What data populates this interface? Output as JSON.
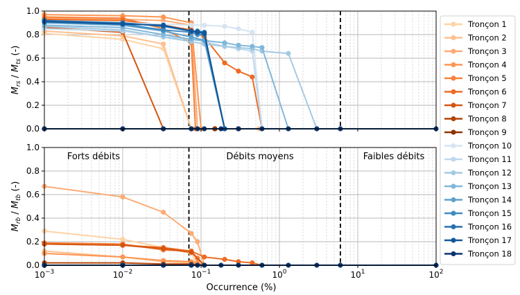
{
  "chart_data": [
    {
      "type": "line",
      "panel": "top",
      "ylabel_main": "M",
      "ylabel_main_sub": "rs",
      "ylabel_sep": " / ",
      "ylabel_den": "M",
      "ylabel_den_sub": "ts",
      "ylabel_unit": " (-)",
      "xscale": "log",
      "xlim": [
        0.001,
        100
      ],
      "ylim": [
        0,
        1.0
      ],
      "yticks": [
        "0.0",
        "0.2",
        "0.4",
        "0.6",
        "0.8",
        "1.0"
      ],
      "grid": true,
      "vlines_x": [
        0.07,
        6
      ],
      "series": [
        {
          "name": "Tronçon 1",
          "x": [
            0.001,
            0.01,
            0.033,
            0.075,
            0.15,
            0.3,
            0.55
          ],
          "y": [
            0.81,
            0.76,
            0.68,
            0.0,
            0.0,
            0.0,
            0.0
          ]
        },
        {
          "name": "Tronçon 2",
          "x": [
            0.001,
            0.01,
            0.033,
            0.075,
            0.15,
            0.3,
            0.55
          ],
          "y": [
            0.83,
            0.79,
            0.72,
            0.0,
            0.0,
            0.0,
            0.0
          ]
        },
        {
          "name": "Tronçon 3",
          "x": [
            0.001,
            0.01,
            0.033,
            0.075,
            0.09,
            0.15,
            0.3
          ],
          "y": [
            0.94,
            0.93,
            0.92,
            0.88,
            0.0,
            0.0,
            0.0
          ]
        },
        {
          "name": "Tronçon 4",
          "x": [
            0.001,
            0.01,
            0.033,
            0.075,
            0.1,
            0.15,
            0.3
          ],
          "y": [
            0.97,
            0.96,
            0.95,
            0.9,
            0.0,
            0.0,
            0.0
          ]
        },
        {
          "name": "Tronçon 5",
          "x": [
            0.001,
            0.01,
            0.033,
            0.075,
            0.085,
            0.15,
            0.3
          ],
          "y": [
            0.95,
            0.94,
            0.85,
            0.73,
            0.0,
            0.0,
            0.0
          ]
        },
        {
          "name": "Tronçon 6",
          "x": [
            0.001,
            0.01,
            0.033,
            0.075,
            0.11,
            0.2,
            0.3,
            0.45,
            0.6
          ],
          "y": [
            0.93,
            0.92,
            0.88,
            0.84,
            0.78,
            0.56,
            0.49,
            0.44,
            0.0
          ]
        },
        {
          "name": "Tronçon 7",
          "x": [
            0.001,
            0.01,
            0.033,
            0.075,
            0.15,
            0.3
          ],
          "y": [
            0.86,
            0.82,
            0.0,
            0.0,
            0.0,
            0.0
          ]
        },
        {
          "name": "Tronçon 8",
          "x": [
            0.001,
            0.01,
            0.033,
            0.075,
            0.15,
            0.3
          ],
          "y": [
            0.0,
            0.0,
            0.0,
            0.0,
            0.0,
            0.0
          ]
        },
        {
          "name": "Tronçon 9",
          "x": [
            0.001,
            0.01,
            0.033,
            0.075,
            0.15,
            0.3
          ],
          "y": [
            0.0,
            0.0,
            0.0,
            0.0,
            0.0,
            0.0
          ]
        },
        {
          "name": "Tronçon 10",
          "x": [
            0.001,
            0.01,
            0.033,
            0.075,
            0.11,
            0.2,
            0.3,
            0.45,
            0.6
          ],
          "y": [
            0.9,
            0.9,
            0.89,
            0.88,
            0.88,
            0.87,
            0.85,
            0.82,
            0.0
          ]
        },
        {
          "name": "Tronçon 11",
          "x": [
            0.001,
            0.01,
            0.033,
            0.075,
            0.11,
            0.2,
            0.3,
            0.45,
            0.6
          ],
          "y": [
            0.85,
            0.83,
            0.78,
            0.76,
            0.74,
            0.7,
            0.68,
            0.66,
            0.0
          ]
        },
        {
          "name": "Tronçon 12",
          "x": [
            0.001,
            0.01,
            0.033,
            0.075,
            0.11,
            0.2,
            0.3,
            0.45,
            0.6,
            1.3,
            3.0
          ],
          "y": [
            0.87,
            0.84,
            0.78,
            0.74,
            0.72,
            0.7,
            0.69,
            0.68,
            0.66,
            0.64,
            0.0
          ]
        },
        {
          "name": "Tronçon 13",
          "x": [
            0.001,
            0.01,
            0.033,
            0.075,
            0.11,
            0.2,
            0.3,
            0.45,
            0.6,
            1.3
          ],
          "y": [
            0.88,
            0.86,
            0.8,
            0.76,
            0.75,
            0.73,
            0.71,
            0.7,
            0.69,
            0.0
          ]
        },
        {
          "name": "Tronçon 14",
          "x": [
            0.001,
            0.01,
            0.033,
            0.075,
            0.11,
            0.2
          ],
          "y": [
            0.9,
            0.88,
            0.83,
            0.78,
            0.75,
            0.0
          ]
        },
        {
          "name": "Tronçon 15",
          "x": [
            0.001,
            0.01,
            0.033,
            0.075,
            0.09,
            0.11,
            0.2
          ],
          "y": [
            0.91,
            0.89,
            0.84,
            0.82,
            0.8,
            0.8,
            0.0
          ]
        },
        {
          "name": "Tronçon 16",
          "x": [
            0.001,
            0.01,
            0.033,
            0.075,
            0.09,
            0.11,
            0.2
          ],
          "y": [
            0.92,
            0.9,
            0.87,
            0.83,
            0.83,
            0.82,
            0.0
          ]
        },
        {
          "name": "Tronçon 17",
          "x": [
            0.001,
            0.01,
            0.033,
            0.075,
            0.09,
            0.11,
            0.2
          ],
          "y": [
            0.91,
            0.89,
            0.88,
            0.83,
            0.82,
            0.81,
            0.0
          ]
        },
        {
          "name": "Tronçon 18",
          "x": [
            0.001,
            0.01,
            0.033,
            0.075,
            0.09,
            0.11,
            0.18,
            0.3,
            0.6,
            1.3,
            3.0,
            6.0,
            100
          ],
          "y": [
            0.0,
            0.0,
            0.0,
            0.0,
            0.0,
            0.0,
            0.0,
            0.0,
            0.0,
            0.0,
            0.0,
            0.0,
            0.0
          ]
        }
      ]
    },
    {
      "type": "line",
      "panel": "bottom",
      "ylabel_main": "M",
      "ylabel_main_sub": "rb",
      "ylabel_sep": " / ",
      "ylabel_den": "M",
      "ylabel_den_sub": "tb",
      "ylabel_unit": " (-)",
      "xlabel": "Occurrence (%)",
      "xscale": "log",
      "xlim": [
        0.001,
        100
      ],
      "ylim": [
        0,
        1.0
      ],
      "yticks": [
        "0.0",
        "0.2",
        "0.4",
        "0.6",
        "0.8",
        "1.0"
      ],
      "xticks": [
        {
          "base": "10",
          "exp": "−3"
        },
        {
          "base": "10",
          "exp": "−2"
        },
        {
          "base": "10",
          "exp": "−1"
        },
        {
          "base": "10",
          "exp": "0"
        },
        {
          "base": "10",
          "exp": "1"
        },
        {
          "base": "10",
          "exp": "2"
        }
      ],
      "grid": true,
      "vlines_x": [
        0.07,
        6
      ],
      "regions": [
        "Forts débits",
        "Débits moyens",
        "Faibles débits"
      ],
      "series": [
        {
          "name": "Tronçon 1",
          "x": [
            0.001,
            0.01,
            0.033,
            0.075,
            0.09
          ],
          "y": [
            0.29,
            0.22,
            0.15,
            0.1,
            0.0
          ]
        },
        {
          "name": "Tronçon 2",
          "x": [
            0.001,
            0.01,
            0.033,
            0.075,
            0.09
          ],
          "y": [
            0.12,
            0.07,
            0.03,
            0.02,
            0.0
          ]
        },
        {
          "name": "Tronçon 3",
          "x": [
            0.001,
            0.01,
            0.033,
            0.075,
            0.09,
            0.11
          ],
          "y": [
            0.67,
            0.58,
            0.45,
            0.27,
            0.2,
            0.0
          ]
        },
        {
          "name": "Tronçon 4",
          "x": [
            0.001,
            0.01,
            0.033,
            0.075,
            0.09,
            0.11
          ],
          "y": [
            0.1,
            0.07,
            0.04,
            0.03,
            0.02,
            0.0
          ]
        },
        {
          "name": "Tronçon 5",
          "x": [
            0.001,
            0.01,
            0.033,
            0.075,
            0.09,
            0.11
          ],
          "y": [
            0.19,
            0.18,
            0.13,
            0.12,
            0.06,
            0.0
          ]
        },
        {
          "name": "Tronçon 6",
          "x": [
            0.001,
            0.01,
            0.033,
            0.075,
            0.11,
            0.2,
            0.3,
            0.45,
            0.6
          ],
          "y": [
            0.18,
            0.17,
            0.15,
            0.12,
            0.07,
            0.05,
            0.03,
            0.02,
            0.0
          ]
        },
        {
          "name": "Tronçon 7",
          "x": [
            0.001,
            0.01,
            0.033,
            0.075,
            0.11
          ],
          "y": [
            0.18,
            0.17,
            0.14,
            0.11,
            0.0
          ]
        },
        {
          "name": "Tronçon 8",
          "x": [
            0.001,
            0.01,
            0.033,
            0.075,
            0.11
          ],
          "y": [
            0.02,
            0.02,
            0.01,
            0.01,
            0.0
          ]
        },
        {
          "name": "Tronçon 9",
          "x": [
            0.001,
            0.01,
            0.033,
            0.075
          ],
          "y": [
            0.0,
            0.0,
            0.0,
            0.0
          ]
        },
        {
          "name": "Tronçon 10",
          "x": [
            0.001,
            0.01,
            0.033,
            0.075
          ],
          "y": [
            0.0,
            0.0,
            0.0,
            0.0
          ]
        },
        {
          "name": "Tronçon 11",
          "x": [
            0.001,
            0.01,
            0.033,
            0.075
          ],
          "y": [
            0.0,
            0.0,
            0.0,
            0.0
          ]
        },
        {
          "name": "Tronçon 12",
          "x": [
            0.001,
            0.01,
            0.033,
            0.075
          ],
          "y": [
            0.0,
            0.0,
            0.0,
            0.0
          ]
        },
        {
          "name": "Tronçon 13",
          "x": [
            0.001,
            0.01,
            0.033,
            0.075
          ],
          "y": [
            0.0,
            0.0,
            0.0,
            0.0
          ]
        },
        {
          "name": "Tronçon 14",
          "x": [
            0.001,
            0.01,
            0.033,
            0.075
          ],
          "y": [
            0.0,
            0.0,
            0.0,
            0.0
          ]
        },
        {
          "name": "Tronçon 15",
          "x": [
            0.001,
            0.01,
            0.033,
            0.075
          ],
          "y": [
            0.0,
            0.0,
            0.0,
            0.0
          ]
        },
        {
          "name": "Tronçon 16",
          "x": [
            0.001,
            0.01,
            0.033,
            0.075
          ],
          "y": [
            0.0,
            0.0,
            0.0,
            0.0
          ]
        },
        {
          "name": "Tronçon 17",
          "x": [
            0.001,
            0.01,
            0.033,
            0.075
          ],
          "y": [
            0.0,
            0.0,
            0.0,
            0.0
          ]
        },
        {
          "name": "Tronçon 18",
          "x": [
            0.001,
            0.01,
            0.033,
            0.075,
            0.09,
            0.11,
            0.18,
            0.3,
            0.6,
            1.3,
            3.0,
            6.0,
            100
          ],
          "y": [
            0.0,
            0.0,
            0.0,
            0.0,
            0.0,
            0.0,
            0.0,
            0.0,
            0.0,
            0.0,
            0.0,
            0.0,
            0.0
          ]
        }
      ]
    }
  ],
  "legend": {
    "placement": "right",
    "entries": [
      {
        "label": "Tronçon 1",
        "color": "#fdd3a6"
      },
      {
        "label": "Tronçon 2",
        "color": "#fdc08f"
      },
      {
        "label": "Tronçon 3",
        "color": "#fdab75"
      },
      {
        "label": "Tronçon 4",
        "color": "#fd9654"
      },
      {
        "label": "Tronçon 5",
        "color": "#f7813a"
      },
      {
        "label": "Tronçon 6",
        "color": "#ec6c24"
      },
      {
        "label": "Tronçon 7",
        "color": "#d45510"
      },
      {
        "label": "Tronçon 8",
        "color": "#b14306"
      },
      {
        "label": "Tronçon 9",
        "color": "#8c3303"
      },
      {
        "label": "Tronçon 10",
        "color": "#d6e4f2"
      },
      {
        "label": "Tronçon 11",
        "color": "#c0d8ed"
      },
      {
        "label": "Tronçon 12",
        "color": "#a4cae3"
      },
      {
        "label": "Tronçon 13",
        "color": "#80b7da"
      },
      {
        "label": "Tronçon 14",
        "color": "#5ea2ce"
      },
      {
        "label": "Tronçon 15",
        "color": "#3f8bc2"
      },
      {
        "label": "Tronçon 16",
        "color": "#2670b1"
      },
      {
        "label": "Tronçon 17",
        "color": "#115699"
      },
      {
        "label": "Tronçon 18",
        "color": "#0a3570"
      }
    ]
  }
}
